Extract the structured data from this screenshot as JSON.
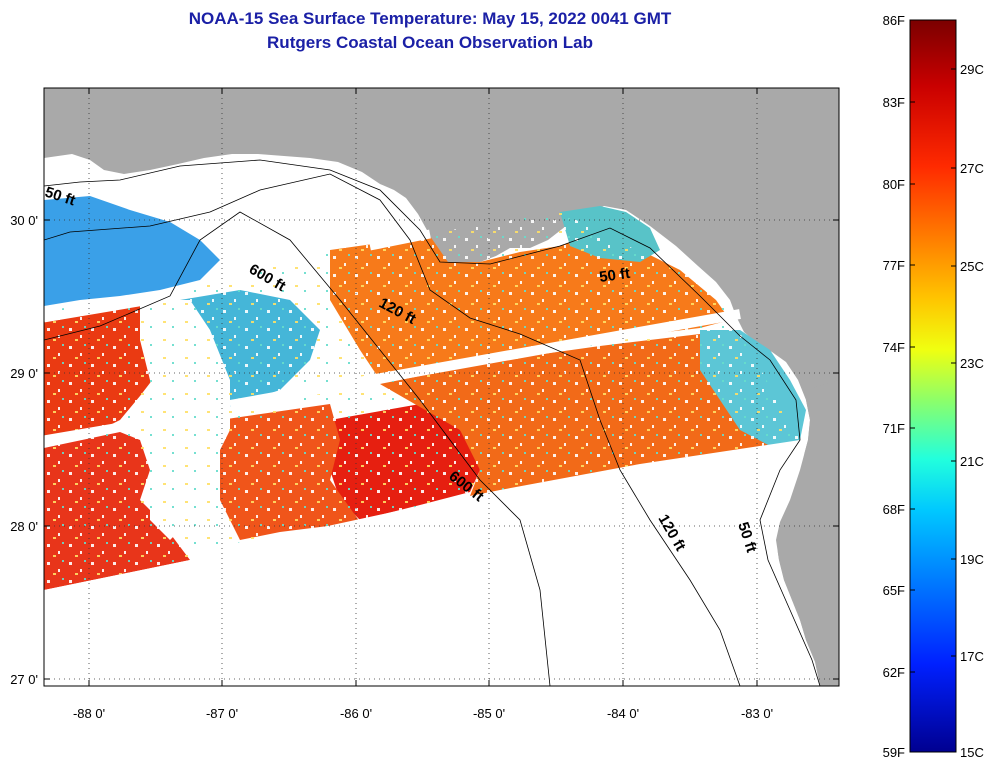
{
  "header": {
    "title_line1": "NOAA-15 Sea Surface Temperature:  May 15, 2022 0041 GMT",
    "title_line2": "Rutgers Coastal Ocean Observation Lab"
  },
  "map": {
    "region": "Gulf of Mexico, Florida Big Bend / Panhandle",
    "lon_range": [
      -88.35,
      -82.45
    ],
    "lat_range": [
      26.98,
      30.85
    ],
    "x_ticks": [
      {
        "value": -88,
        "label": "-88 0'"
      },
      {
        "value": -87,
        "label": "-87 0'"
      },
      {
        "value": -86,
        "label": "-86 0'"
      },
      {
        "value": -85,
        "label": "-85 0'"
      },
      {
        "value": -84,
        "label": "-84 0'"
      },
      {
        "value": -83,
        "label": "-83 0'"
      }
    ],
    "y_ticks": [
      {
        "value": 30,
        "label": "30 0'"
      },
      {
        "value": 29,
        "label": "29 0'"
      },
      {
        "value": 28,
        "label": "28 0'"
      },
      {
        "value": 27,
        "label": "27 0'"
      }
    ],
    "grid": "dotted",
    "depth_contour_labels": [
      {
        "text": "50 ft",
        "lon": -88.05,
        "lat": 30.12
      },
      {
        "text": "600 ft",
        "lon": -86.8,
        "lat": 29.65
      },
      {
        "text": "120 ft",
        "lon": -85.6,
        "lat": 29.42
      },
      {
        "text": "50 ft",
        "lon": -83.85,
        "lat": 29.64
      },
      {
        "text": "600 ft",
        "lon": -85.1,
        "lat": 28.22
      },
      {
        "text": "120 ft",
        "lon": -84.02,
        "lat": 27.95
      },
      {
        "text": "50 ft",
        "lon": -83.12,
        "lat": 27.85
      }
    ],
    "colors": {
      "land": "#a9a9a9",
      "no_data": "#ffffff",
      "warm_sst": "#ee3410",
      "warmer_sst": "#e61f10",
      "mid_sst": "#f77a1a",
      "cool_sst": "#4fc0e0",
      "cold_sst": "#1a2fd0"
    }
  },
  "colorbar": {
    "fahrenheit_labels": [
      "86F",
      "83F",
      "80F",
      "77F",
      "74F",
      "71F",
      "68F",
      "65F",
      "62F",
      "59F"
    ],
    "celsius_labels": [
      "29C",
      "27C",
      "25C",
      "23C",
      "21C",
      "19C",
      "17C",
      "15C"
    ],
    "gradient_stops": [
      "#7b0000",
      "#c90000",
      "#ff2a00",
      "#ff7f00",
      "#ffc400",
      "#f0ff10",
      "#8cff6a",
      "#22ffdd",
      "#00c8ff",
      "#0080ff",
      "#0020ff",
      "#000090"
    ]
  }
}
